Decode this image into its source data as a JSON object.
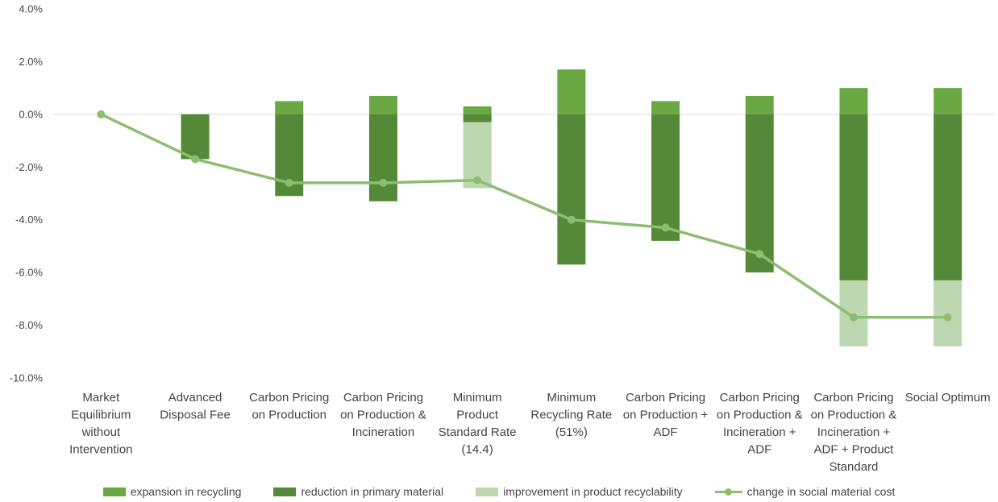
{
  "chart_data": {
    "type": "bar",
    "stacked": true,
    "title": "",
    "xlabel": "",
    "ylabel": "",
    "ylim": [
      -0.1,
      0.04
    ],
    "y_ticks": [
      "4.0%",
      "2.0%",
      "0.0%",
      "-2.0%",
      "-4.0%",
      "-6.0%",
      "-8.0%",
      "-10.0%"
    ],
    "y_tick_values": [
      0.04,
      0.02,
      0.0,
      -0.02,
      -0.04,
      -0.06,
      -0.08,
      -0.1
    ],
    "grid": false,
    "legend_position": "bottom",
    "categories": [
      [
        "Market",
        "Equilibrium",
        "without",
        "Intervention"
      ],
      [
        "Advanced",
        "Disposal Fee"
      ],
      [
        "Carbon Pricing",
        "on Production"
      ],
      [
        "Carbon Pricing",
        "on Production &",
        "Incineration"
      ],
      [
        "Minimum",
        "Product",
        "Standard Rate",
        "(14.4)"
      ],
      [
        "Minimum",
        "Recycling Rate",
        "(51%)"
      ],
      [
        "Carbon Pricing",
        "on Production +",
        "ADF"
      ],
      [
        "Carbon Pricing",
        "on Production &",
        "Incineration +",
        "ADF"
      ],
      [
        "Carbon Pricing",
        "on Production &",
        "Incineration +",
        "ADF + Product",
        "Standard"
      ],
      [
        "Social Optimum"
      ]
    ],
    "series": [
      {
        "name": "expansion in recycling",
        "kind": "bar",
        "color": "#6aa843",
        "values": [
          0,
          0,
          0.005,
          0.007,
          0.003,
          0.017,
          0.005,
          0.007,
          0.01,
          0.01
        ]
      },
      {
        "name": "reduction in primary material",
        "kind": "bar",
        "color": "#548a37",
        "values": [
          0,
          -0.017,
          -0.031,
          -0.033,
          -0.003,
          -0.057,
          -0.048,
          -0.06,
          -0.063,
          -0.063
        ]
      },
      {
        "name": "improvement in product recyclability",
        "kind": "bar",
        "color": "#bdd7b0",
        "values": [
          0,
          0,
          0,
          0,
          -0.025,
          0,
          0,
          0,
          -0.025,
          -0.025
        ]
      },
      {
        "name": "change in social material cost",
        "kind": "line",
        "color": "#8cbe72",
        "values": [
          0.0,
          -0.017,
          -0.026,
          -0.026,
          -0.025,
          -0.04,
          -0.043,
          -0.053,
          -0.077,
          -0.077
        ]
      }
    ]
  }
}
